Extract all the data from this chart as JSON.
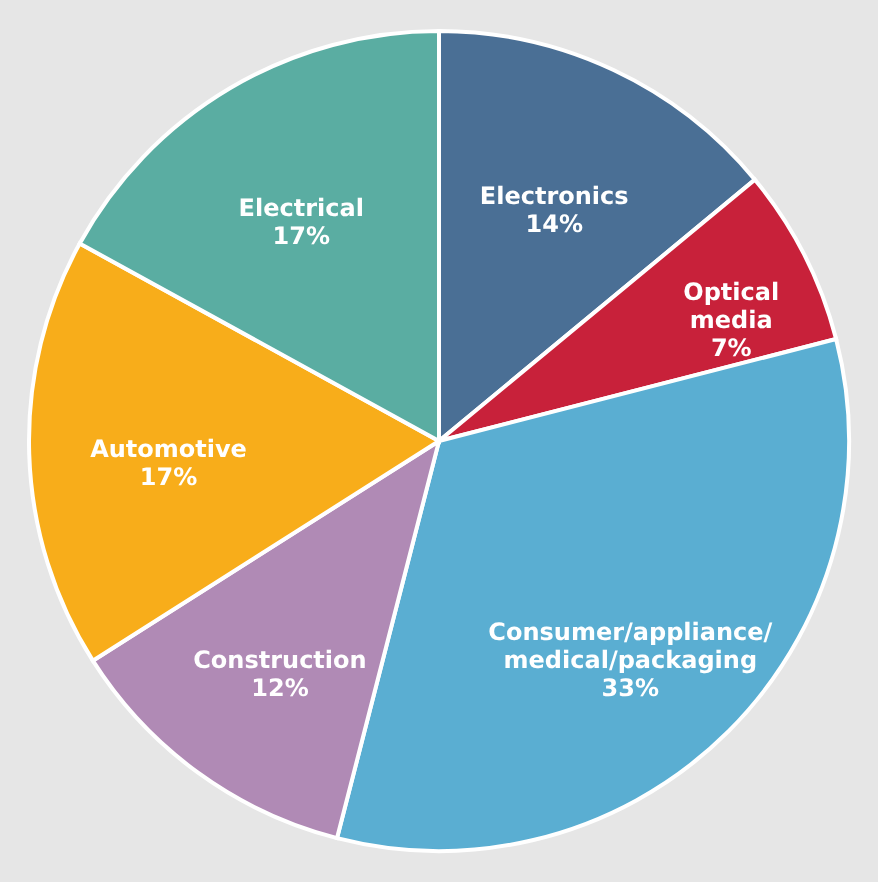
{
  "chart_data": {
    "type": "pie",
    "categories": [
      "Electronics",
      "Optical media",
      "Consumer/appliance/medical/packaging",
      "Construction",
      "Automotive",
      "Electrical"
    ],
    "values": [
      14,
      7,
      33,
      12,
      17,
      17
    ],
    "value_labels": [
      "14%",
      "7%",
      "33%",
      "12%",
      "17%",
      "17%"
    ],
    "colors": [
      "#4a6f95",
      "#c8213a",
      "#5aaed2",
      "#b08ab5",
      "#f8ad1a",
      "#5aada2"
    ],
    "legend": false
  }
}
